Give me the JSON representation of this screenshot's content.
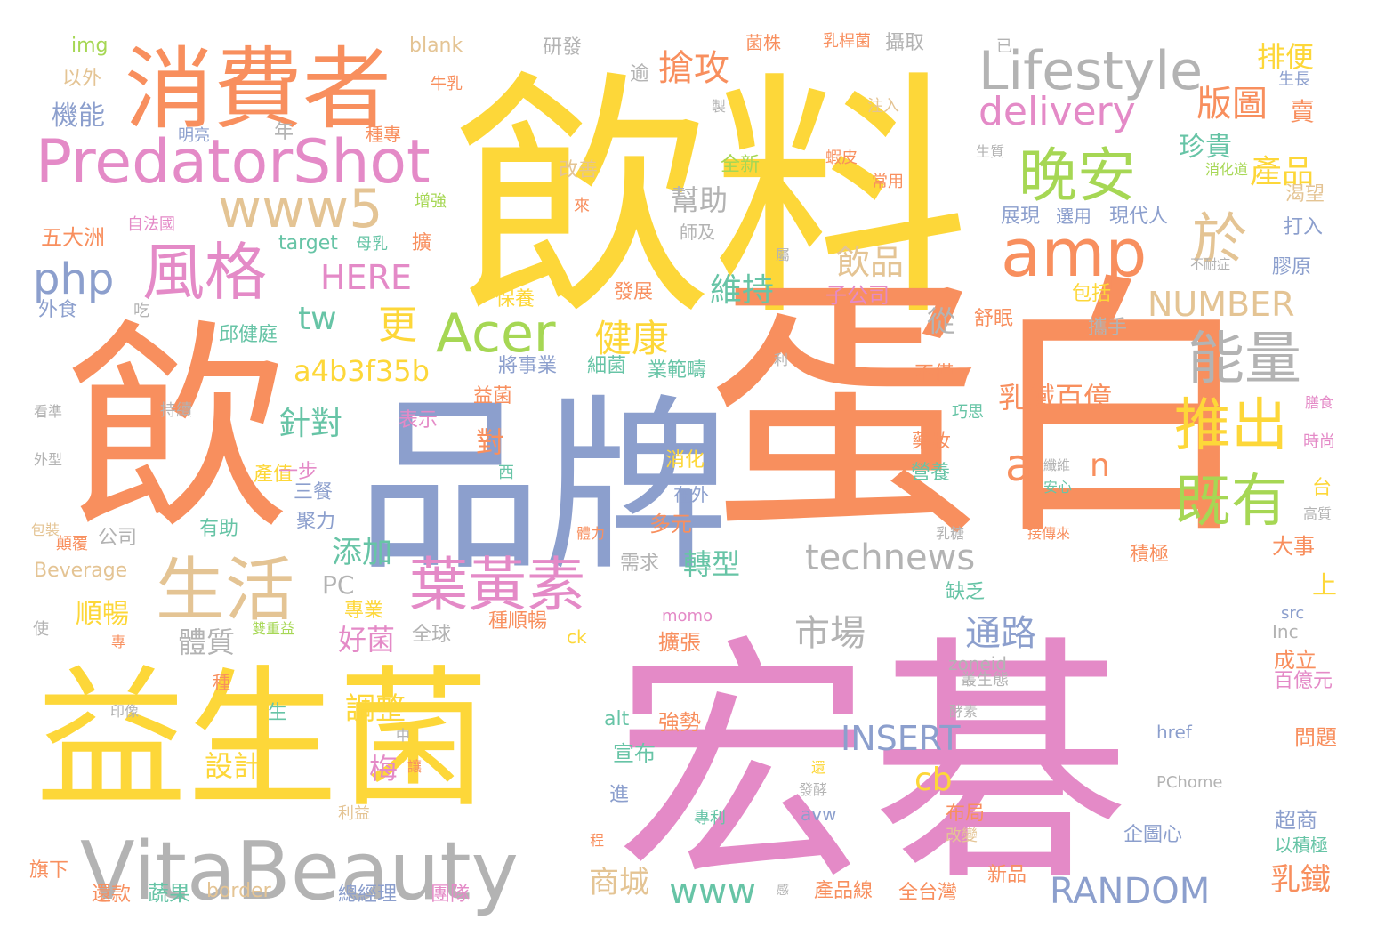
{
  "palette": {
    "yellow": "#fdd739",
    "orange": "#f88f5e",
    "pink": "#e48ac7",
    "blue": "#8c9fcd",
    "green": "#a6d754",
    "tan": "#e4c494",
    "teal": "#67c4a6",
    "gray": "#b3b3b3"
  },
  "words": [
    {
      "text": "飲料",
      "color": "yellow"
    },
    {
      "text": "蛋白",
      "color": "orange"
    },
    {
      "text": "宏碁",
      "color": "pink"
    },
    {
      "text": "飲",
      "color": "orange"
    },
    {
      "text": "益生菌",
      "color": "yellow"
    },
    {
      "text": "品牌",
      "color": "blue"
    },
    {
      "text": "消費者",
      "color": "orange"
    },
    {
      "text": "VitaBeauty",
      "color": "gray"
    },
    {
      "text": "PredatorShot",
      "color": "pink"
    },
    {
      "text": "Lifestyle",
      "color": "gray"
    },
    {
      "text": "生活",
      "color": "tan"
    },
    {
      "text": "amp",
      "color": "orange"
    },
    {
      "text": "www5",
      "color": "tan"
    },
    {
      "text": "Acer",
      "color": "green"
    },
    {
      "text": "風格",
      "color": "pink"
    },
    {
      "text": "晚安",
      "color": "green"
    },
    {
      "text": "於",
      "color": "tan"
    },
    {
      "text": "葉黃素",
      "color": "pink"
    },
    {
      "text": "delivery",
      "color": "pink"
    },
    {
      "text": "能量",
      "color": "gray"
    },
    {
      "text": "推出",
      "color": "yellow"
    },
    {
      "text": "既有",
      "color": "green"
    },
    {
      "text": "technews",
      "color": "gray"
    },
    {
      "text": "搶攻",
      "color": "orange"
    },
    {
      "text": "php",
      "color": "blue"
    },
    {
      "text": "RANDOM",
      "color": "blue"
    },
    {
      "text": "NUMBER",
      "color": "tan"
    },
    {
      "text": "INSERT",
      "color": "blue"
    },
    {
      "text": "a4b3f35b",
      "color": "yellow"
    },
    {
      "text": "HERE",
      "color": "pink"
    },
    {
      "text": "版圖",
      "color": "orange"
    },
    {
      "text": "產品",
      "color": "yellow"
    },
    {
      "text": "健康",
      "color": "yellow"
    },
    {
      "text": "乳鐵百億",
      "color": "orange"
    },
    {
      "text": "市場",
      "color": "gray"
    },
    {
      "text": "飲品",
      "color": "tan"
    },
    {
      "text": "通路",
      "color": "blue"
    },
    {
      "text": "針對",
      "color": "teal"
    },
    {
      "text": "tw",
      "color": "teal"
    },
    {
      "text": "更",
      "color": "yellow"
    },
    {
      "text": "維持",
      "color": "teal"
    },
    {
      "text": "www",
      "color": "teal"
    },
    {
      "text": "a",
      "color": "orange"
    },
    {
      "text": "n",
      "color": "orange"
    },
    {
      "text": "cb",
      "color": "yellow"
    },
    {
      "text": "排便",
      "color": "yellow"
    },
    {
      "text": "珍貴",
      "color": "teal"
    },
    {
      "text": "賣",
      "color": "orange"
    },
    {
      "text": "幫助",
      "color": "gray"
    },
    {
      "text": "添加",
      "color": "teal"
    },
    {
      "text": "轉型",
      "color": "teal"
    },
    {
      "text": "商城",
      "color": "tan"
    },
    {
      "text": "乳鐵",
      "color": "orange"
    },
    {
      "text": "機能",
      "color": "blue"
    },
    {
      "text": "順暢",
      "color": "yellow"
    },
    {
      "text": "體質",
      "color": "gray"
    },
    {
      "text": "好菌",
      "color": "pink"
    },
    {
      "text": "調整",
      "color": "yellow"
    },
    {
      "text": "設計",
      "color": "yellow"
    },
    {
      "text": "梅",
      "color": "pink"
    },
    {
      "text": "從",
      "color": "gray"
    },
    {
      "text": "對",
      "color": "orange"
    },
    {
      "text": "上",
      "color": "yellow"
    },
    {
      "text": "PC",
      "color": "gray"
    },
    {
      "text": "img",
      "color": "green"
    },
    {
      "text": "以外",
      "color": "tan"
    },
    {
      "text": "blank",
      "color": "tan"
    },
    {
      "text": "研發",
      "color": "gray"
    },
    {
      "text": "菌株",
      "color": "orange"
    },
    {
      "text": "乳桿菌",
      "color": "orange"
    },
    {
      "text": "攝取",
      "color": "gray"
    },
    {
      "text": "已",
      "color": "gray"
    },
    {
      "text": "牛乳",
      "color": "orange"
    },
    {
      "text": "逾",
      "color": "gray"
    },
    {
      "text": "生長",
      "color": "blue"
    },
    {
      "text": "製",
      "color": "gray"
    },
    {
      "text": "注入",
      "color": "tan"
    },
    {
      "text": "明亮",
      "color": "blue"
    },
    {
      "text": "年",
      "color": "gray"
    },
    {
      "text": "種專",
      "color": "orange"
    },
    {
      "text": "全新",
      "color": "green"
    },
    {
      "text": "蝦皮",
      "color": "orange"
    },
    {
      "text": "改善",
      "color": "tan"
    },
    {
      "text": "常用",
      "color": "orange"
    },
    {
      "text": "生質",
      "color": "gray"
    },
    {
      "text": "消化道",
      "color": "green"
    },
    {
      "text": "渴望",
      "color": "tan"
    },
    {
      "text": "自法國",
      "color": "pink"
    },
    {
      "text": "增強",
      "color": "green"
    },
    {
      "text": "來",
      "color": "orange"
    },
    {
      "text": "展現",
      "color": "blue"
    },
    {
      "text": "選用",
      "color": "blue"
    },
    {
      "text": "現代人",
      "color": "blue"
    },
    {
      "text": "打入",
      "color": "blue"
    },
    {
      "text": "五大洲",
      "color": "orange"
    },
    {
      "text": "target",
      "color": "teal"
    },
    {
      "text": "母乳",
      "color": "teal"
    },
    {
      "text": "擴",
      "color": "orange"
    },
    {
      "text": "師及",
      "color": "gray"
    },
    {
      "text": "屬",
      "color": "gray"
    },
    {
      "text": "不耐症",
      "color": "gray"
    },
    {
      "text": "膠原",
      "color": "blue"
    },
    {
      "text": "外食",
      "color": "blue"
    },
    {
      "text": "吃",
      "color": "gray"
    },
    {
      "text": "保養",
      "color": "yellow"
    },
    {
      "text": "發展",
      "color": "orange"
    },
    {
      "text": "子公司",
      "color": "pink"
    },
    {
      "text": "包括",
      "color": "yellow"
    },
    {
      "text": "舒眠",
      "color": "orange"
    },
    {
      "text": "攜手",
      "color": "gray"
    },
    {
      "text": "邱健庭",
      "color": "teal"
    },
    {
      "text": "將事業",
      "color": "blue"
    },
    {
      "text": "細菌",
      "color": "teal"
    },
    {
      "text": "業範疇",
      "color": "teal"
    },
    {
      "text": "利",
      "color": "gray"
    },
    {
      "text": "益菌",
      "color": "orange"
    },
    {
      "text": "不僅",
      "color": "orange"
    },
    {
      "text": "看準",
      "color": "gray"
    },
    {
      "text": "持續",
      "color": "gray"
    },
    {
      "text": "表示",
      "color": "pink"
    },
    {
      "text": "巧思",
      "color": "teal"
    },
    {
      "text": "膳食",
      "color": "pink"
    },
    {
      "text": "產值",
      "color": "yellow"
    },
    {
      "text": "藥妝",
      "color": "orange"
    },
    {
      "text": "時尚",
      "color": "pink"
    },
    {
      "text": "外型",
      "color": "gray"
    },
    {
      "text": "一步",
      "color": "pink"
    },
    {
      "text": "西",
      "color": "teal"
    },
    {
      "text": "消化",
      "color": "yellow"
    },
    {
      "text": "營養",
      "color": "teal"
    },
    {
      "text": "纖維",
      "color": "gray"
    },
    {
      "text": "三餐",
      "color": "blue"
    },
    {
      "text": "在外",
      "color": "blue"
    },
    {
      "text": "安心",
      "color": "teal"
    },
    {
      "text": "台",
      "color": "yellow"
    },
    {
      "text": "聚力",
      "color": "blue"
    },
    {
      "text": "多元",
      "color": "orange"
    },
    {
      "text": "高質",
      "color": "gray"
    },
    {
      "text": "包裝",
      "color": "tan"
    },
    {
      "text": "顛覆",
      "color": "orange"
    },
    {
      "text": "公司",
      "color": "gray"
    },
    {
      "text": "有助",
      "color": "teal"
    },
    {
      "text": "體力",
      "color": "orange"
    },
    {
      "text": "乳糖",
      "color": "gray"
    },
    {
      "text": "接傳來",
      "color": "orange"
    },
    {
      "text": "大事",
      "color": "orange"
    },
    {
      "text": "Beverage",
      "color": "tan"
    },
    {
      "text": "需求",
      "color": "gray"
    },
    {
      "text": "缺乏",
      "color": "teal"
    },
    {
      "text": "積極",
      "color": "orange"
    },
    {
      "text": "專業",
      "color": "yellow"
    },
    {
      "text": "全球",
      "color": "gray"
    },
    {
      "text": "種順暢",
      "color": "orange"
    },
    {
      "text": "momo",
      "color": "pink"
    },
    {
      "text": "src",
      "color": "blue"
    },
    {
      "text": "使",
      "color": "gray"
    },
    {
      "text": "雙重益",
      "color": "green"
    },
    {
      "text": "專",
      "color": "orange"
    },
    {
      "text": "ck",
      "color": "yellow"
    },
    {
      "text": "擴張",
      "color": "orange"
    },
    {
      "text": "Inc",
      "color": "gray"
    },
    {
      "text": "種",
      "color": "orange"
    },
    {
      "text": "zoneid",
      "color": "gray"
    },
    {
      "text": "叢生態",
      "color": "gray"
    },
    {
      "text": "成立",
      "color": "orange"
    },
    {
      "text": "百億元",
      "color": "pink"
    },
    {
      "text": "印像",
      "color": "gray"
    },
    {
      "text": "生",
      "color": "teal"
    },
    {
      "text": "強勢",
      "color": "orange"
    },
    {
      "text": "alt",
      "color": "teal"
    },
    {
      "text": "酵素",
      "color": "gray"
    },
    {
      "text": "中",
      "color": "gray"
    },
    {
      "text": "href",
      "color": "blue"
    },
    {
      "text": "問題",
      "color": "orange"
    },
    {
      "text": "宣布",
      "color": "teal"
    },
    {
      "text": "讓",
      "color": "orange"
    },
    {
      "text": "還",
      "color": "yellow"
    },
    {
      "text": "發酵",
      "color": "gray"
    },
    {
      "text": "進",
      "color": "blue"
    },
    {
      "text": "PChome",
      "color": "gray"
    },
    {
      "text": "利益",
      "color": "tan"
    },
    {
      "text": "avw",
      "color": "blue"
    },
    {
      "text": "專利",
      "color": "teal"
    },
    {
      "text": "布局",
      "color": "orange"
    },
    {
      "text": "超商",
      "color": "blue"
    },
    {
      "text": "企圖心",
      "color": "blue"
    },
    {
      "text": "改變",
      "color": "tan"
    },
    {
      "text": "以積極",
      "color": "teal"
    },
    {
      "text": "程",
      "color": "orange"
    },
    {
      "text": "旗下",
      "color": "orange"
    },
    {
      "text": "新品",
      "color": "orange"
    },
    {
      "text": "還款",
      "color": "orange"
    },
    {
      "text": "蔬果",
      "color": "teal"
    },
    {
      "text": "border",
      "color": "tan"
    },
    {
      "text": "總經理",
      "color": "blue"
    },
    {
      "text": "團隊",
      "color": "pink"
    },
    {
      "text": "感",
      "color": "gray"
    },
    {
      "text": "產品線",
      "color": "orange"
    },
    {
      "text": "全台灣",
      "color": "orange"
    }
  ]
}
